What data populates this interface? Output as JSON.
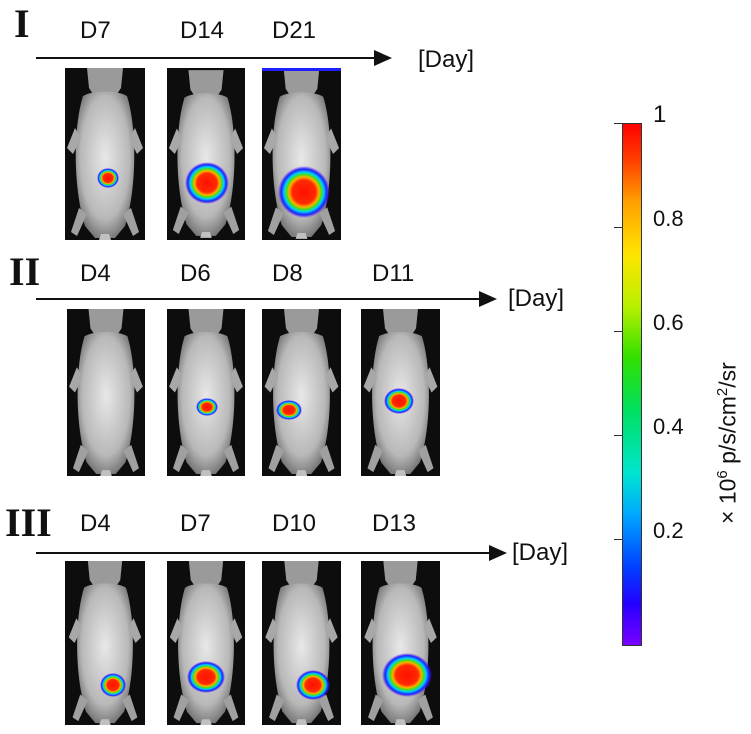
{
  "rows": [
    {
      "numeral": "I",
      "unit": "[Day]",
      "days": [
        "D7",
        "D14",
        "D21"
      ]
    },
    {
      "numeral": "II",
      "unit": "[Day]",
      "days": [
        "D4",
        "D6",
        "D8",
        "D11"
      ]
    },
    {
      "numeral": "III",
      "unit": "[Day]",
      "days": [
        "D4",
        "D7",
        "D10",
        "D13"
      ]
    }
  ],
  "colorbar": {
    "max_label": "1",
    "ticks": [
      "0.8",
      "0.6",
      "0.4",
      "0.2"
    ],
    "title_prefix": "× 10",
    "title_exp": "6",
    "title_mid": " p/s/cm",
    "title_exp2": "2",
    "title_suffix": "/sr"
  },
  "colors": {
    "text": "#111111",
    "signal_core": "#ff1a00",
    "signal_edge": "#2a00ff"
  }
}
